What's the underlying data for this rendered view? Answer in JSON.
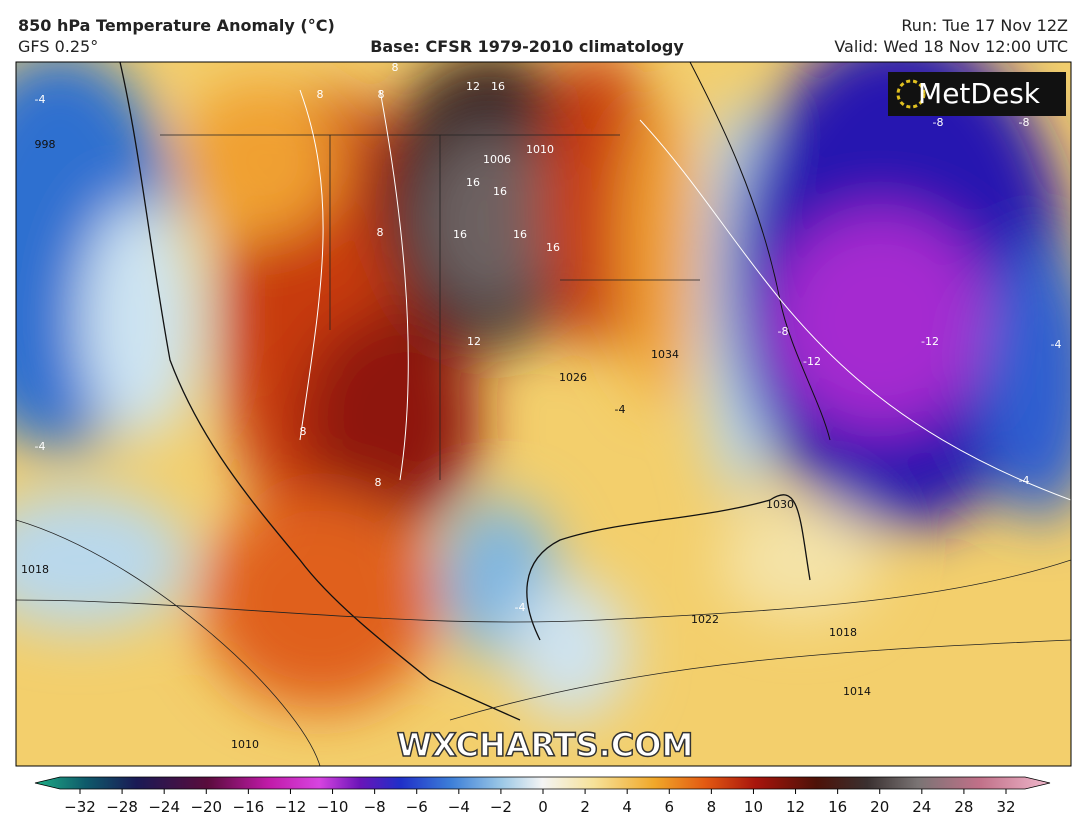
{
  "header": {
    "title": "850 hPa Temperature Anomaly (°C)",
    "model": "GFS 0.25°",
    "base": "Base: CFSR 1979-2010 climatology",
    "run": "Run: Tue 17 Nov 12Z",
    "valid": "Valid: Wed 18 Nov 12:00 UTC"
  },
  "map": {
    "logo": "MetDesk",
    "watermark": "WXCHARTS.COM",
    "contour_labels": [
      "1022",
      "1018",
      "1018",
      "1014",
      "1010",
      "1026",
      "1034",
      "1030",
      "998",
      "1010",
      "1006",
      "16",
      "16",
      "16",
      "16",
      "16",
      "16",
      "12",
      "12",
      "8",
      "8",
      "8",
      "8",
      "8",
      "8",
      "-4",
      "-4",
      "-4",
      "-4",
      "-8",
      "-8",
      "-8",
      "-12",
      "-12",
      "-4",
      "-4"
    ]
  },
  "colorbar": {
    "ticks": [
      "−32",
      "−28",
      "−24",
      "−20",
      "−16",
      "−12",
      "−10",
      "−8",
      "−6",
      "−4",
      "−2",
      "0",
      "2",
      "4",
      "6",
      "8",
      "10",
      "12",
      "16",
      "20",
      "24",
      "28",
      "32"
    ]
  }
}
